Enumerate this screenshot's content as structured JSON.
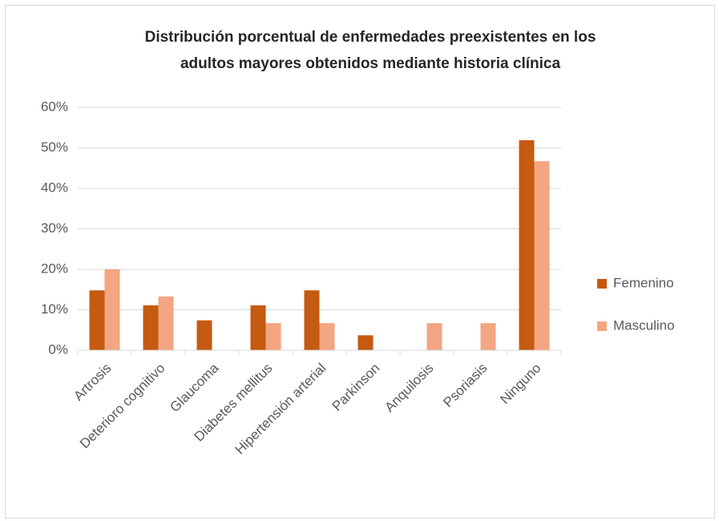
{
  "chart_data": {
    "type": "bar",
    "title": [
      "Distribución porcentual de enfermedades preexistentes en los",
      "adultos mayores obtenidos mediante historia clínica"
    ],
    "categories": [
      "Artrosis",
      "Deterioro cognitivo",
      "Glaucoma",
      "Diabetes mellitus",
      "Hipertensión arterial",
      "Parkinson",
      "Anquilosis",
      "Psoriasis",
      "Ninguno"
    ],
    "series": [
      {
        "name": "Femenino",
        "color": "#c55a11",
        "values": [
          14.8,
          11.1,
          7.4,
          11.1,
          14.8,
          3.7,
          0,
          0,
          51.9
        ]
      },
      {
        "name": "Masculino",
        "color": "#f4a582",
        "values": [
          20,
          13.3,
          0,
          6.7,
          6.7,
          0,
          6.7,
          6.7,
          46.7
        ]
      }
    ],
    "ylim": [
      0,
      60
    ],
    "yticks": [
      {
        "value": 0,
        "label": "0%"
      },
      {
        "value": 10,
        "label": "10%"
      },
      {
        "value": 20,
        "label": "20%"
      },
      {
        "value": 30,
        "label": "30%"
      },
      {
        "value": 40,
        "label": "40%"
      },
      {
        "value": 50,
        "label": "50%"
      },
      {
        "value": 60,
        "label": "60%"
      }
    ],
    "grid": true,
    "legend": "right"
  }
}
